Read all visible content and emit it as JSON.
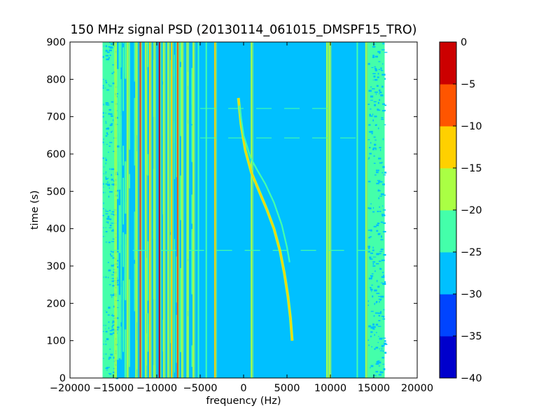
{
  "chart_data": {
    "type": "heatmap",
    "title": "150 MHz signal PSD (20130114_061015_DMSPF15_TRO)",
    "xlabel": "frequency (Hz)",
    "ylabel": "time (s)",
    "xlim": [
      -20000,
      20000
    ],
    "ylim": [
      0,
      900
    ],
    "xticks": [
      -20000,
      -15000,
      -10000,
      -5000,
      0,
      5000,
      10000,
      15000,
      20000
    ],
    "xtick_labels": [
      "−20000",
      "−15000",
      "−10000",
      "−5000",
      "0",
      "5000",
      "10000",
      "15000",
      "20000"
    ],
    "yticks": [
      0,
      100,
      200,
      300,
      400,
      500,
      600,
      700,
      800,
      900
    ],
    "ytick_labels": [
      "0",
      "100",
      "200",
      "300",
      "400",
      "500",
      "600",
      "700",
      "800",
      "900"
    ],
    "data_extent": {
      "freq_range_hz": [
        -16250,
        16250
      ],
      "time_range_s": [
        0,
        900
      ]
    },
    "background_level": -27.5,
    "colorbar": {
      "levels": [
        -40,
        -35,
        -30,
        -25,
        -20,
        -15,
        -10,
        -5,
        0
      ],
      "tick_labels": [
        "−40",
        "−35",
        "−30",
        "−25",
        "−20",
        "−15",
        "−10",
        "−5",
        "0"
      ],
      "colors": [
        "#0000cc",
        "#0044ff",
        "#00c0ff",
        "#44ffaa",
        "#aaff44",
        "#ffd000",
        "#ff5500",
        "#cc0000"
      ]
    },
    "edge_noise_bands": [
      {
        "from_hz": -16250,
        "to_hz": -14600,
        "level": -22.5
      },
      {
        "from_hz": 14300,
        "to_hz": 16250,
        "level": -22.5
      }
    ],
    "noisy_region": {
      "from_hz": -14600,
      "to_hz": -5500,
      "base_level": -27.5,
      "texture_level": -22.5
    },
    "vertical_lines": [
      {
        "freq_hz": -16000,
        "level": -22.5
      },
      {
        "freq_hz": -14800,
        "level": -17.5
      },
      {
        "freq_hz": -13400,
        "level": -17.5
      },
      {
        "freq_hz": -12400,
        "level": -17.5
      },
      {
        "freq_hz": -11900,
        "level": -7.5
      },
      {
        "freq_hz": -11300,
        "level": -17.5
      },
      {
        "freq_hz": -10800,
        "level": -12.5
      },
      {
        "freq_hz": -10300,
        "level": -17.5
      },
      {
        "freq_hz": -9700,
        "level": -2.5
      },
      {
        "freq_hz": -9200,
        "level": -17.5
      },
      {
        "freq_hz": -8700,
        "level": -17.5
      },
      {
        "freq_hz": -8300,
        "level": -12.5
      },
      {
        "freq_hz": -7600,
        "level": -7.5
      },
      {
        "freq_hz": -7100,
        "level": -17.5
      },
      {
        "freq_hz": -6500,
        "level": -17.5
      },
      {
        "freq_hz": -5800,
        "level": -17.5
      },
      {
        "freq_hz": -5200,
        "level": -22.5
      },
      {
        "freq_hz": -4300,
        "level": -22.5
      },
      {
        "freq_hz": -3300,
        "level": -12.5
      },
      {
        "freq_hz": 900,
        "level": -17.5
      },
      {
        "freq_hz": 9600,
        "level": -17.5
      },
      {
        "freq_hz": 9900,
        "level": -17.5
      },
      {
        "freq_hz": 13100,
        "level": -22.5
      },
      {
        "freq_hz": 14100,
        "level": -17.5
      }
    ],
    "doppler_traces": [
      {
        "level": -12.5,
        "points": [
          [
            -600,
            750
          ],
          [
            -300,
            680
          ],
          [
            200,
            610
          ],
          [
            900,
            550
          ],
          [
            1800,
            500
          ],
          [
            2700,
            450
          ],
          [
            3500,
            400
          ],
          [
            4200,
            340
          ],
          [
            4700,
            280
          ],
          [
            5100,
            220
          ],
          [
            5400,
            160
          ],
          [
            5600,
            100
          ]
        ]
      },
      {
        "level": -22.5,
        "points": [
          [
            -500,
            730
          ],
          [
            0,
            650
          ],
          [
            800,
            590
          ],
          [
            1500,
            560
          ],
          [
            2500,
            520
          ],
          [
            3500,
            470
          ],
          [
            4400,
            410
          ],
          [
            5000,
            350
          ],
          [
            5300,
            310
          ]
        ]
      }
    ],
    "horizontal_dashes": [
      {
        "time_s": 722,
        "from_hz": -5000,
        "to_hz": 10000,
        "level": -22.5
      },
      {
        "time_s": 643,
        "from_hz": -5000,
        "to_hz": 15000,
        "level": -22.5
      },
      {
        "time_s": 342,
        "from_hz": -16000,
        "to_hz": 15000,
        "level": -22.5
      }
    ]
  }
}
